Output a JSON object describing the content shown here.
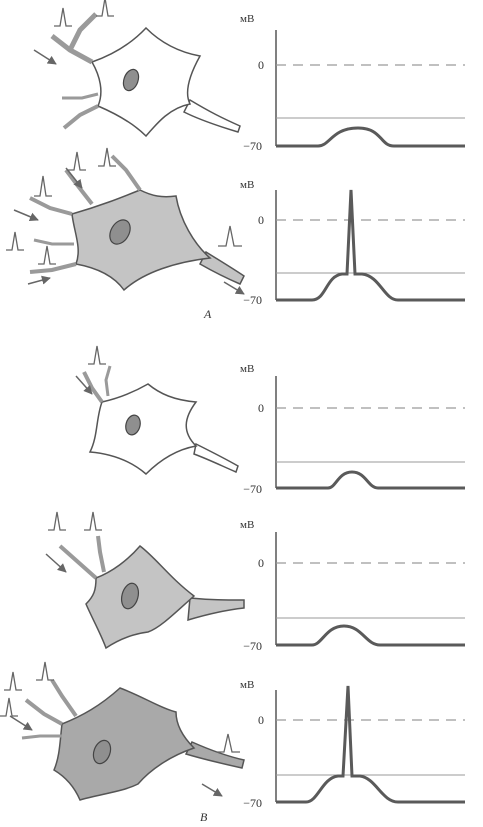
{
  "colors": {
    "ink": "#555555",
    "trace": "#5a5a5a",
    "dash": "#9a9a9a",
    "soma_light": "#ffffff",
    "soma_medium": "#c4c4c4",
    "soma_dark": "#a9a9a9",
    "nucleus": "#8f8f8f"
  },
  "panel_labels": {
    "A": "A",
    "B": "B"
  },
  "rows": [
    {
      "unit": "мВ",
      "tick_zero": "0",
      "tick_rest": "−70",
      "soma_shade": "light",
      "inputs": 2,
      "firing": false,
      "response": "weak depolarization, below threshold"
    },
    {
      "unit": "мВ",
      "tick_zero": "0",
      "tick_rest": "−70",
      "soma_shade": "medium",
      "inputs": 5,
      "firing": true,
      "response": "threshold reached, action potential"
    },
    {
      "unit": "мВ",
      "tick_zero": "0",
      "tick_rest": "−70",
      "soma_shade": "light",
      "inputs": 1,
      "firing": false,
      "response": "weak depolarization, below threshold"
    },
    {
      "unit": "мВ",
      "tick_zero": "0",
      "tick_rest": "−70",
      "soma_shade": "medium",
      "inputs": 2,
      "firing": false,
      "response": "larger depolarization, below threshold"
    },
    {
      "unit": "мВ",
      "tick_zero": "0",
      "tick_rest": "−70",
      "soma_shade": "dark",
      "inputs": 3,
      "firing": true,
      "response": "threshold reached, action potential"
    }
  ]
}
